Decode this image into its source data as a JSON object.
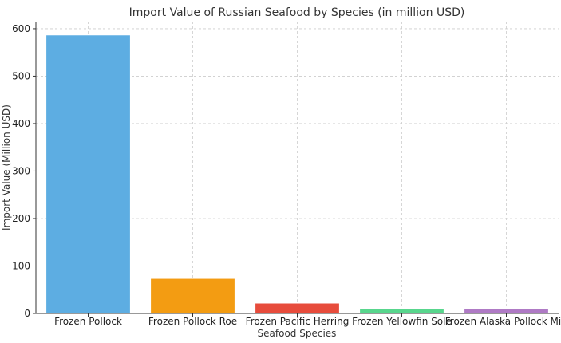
{
  "chart_data": {
    "type": "bar",
    "title": "Import Value of Russian Seafood by Species (in million USD)",
    "xlabel": "Seafood Species",
    "ylabel": "Import Value (Million USD)",
    "categories": [
      "Frozen Pollock",
      "Frozen Pollock Roe",
      "Frozen Pacific Herring",
      "Frozen Yellowfin Sole",
      "Frozen Alaska Pollock Milt"
    ],
    "values": [
      586,
      73,
      21,
      9,
      9
    ],
    "colors": [
      "#5dade2",
      "#f39c12",
      "#e74c3c",
      "#58d68d",
      "#af7ac5"
    ],
    "yticks": [
      0,
      100,
      200,
      300,
      400,
      500,
      600
    ],
    "ylim": [
      0,
      615
    ],
    "grid": true
  }
}
